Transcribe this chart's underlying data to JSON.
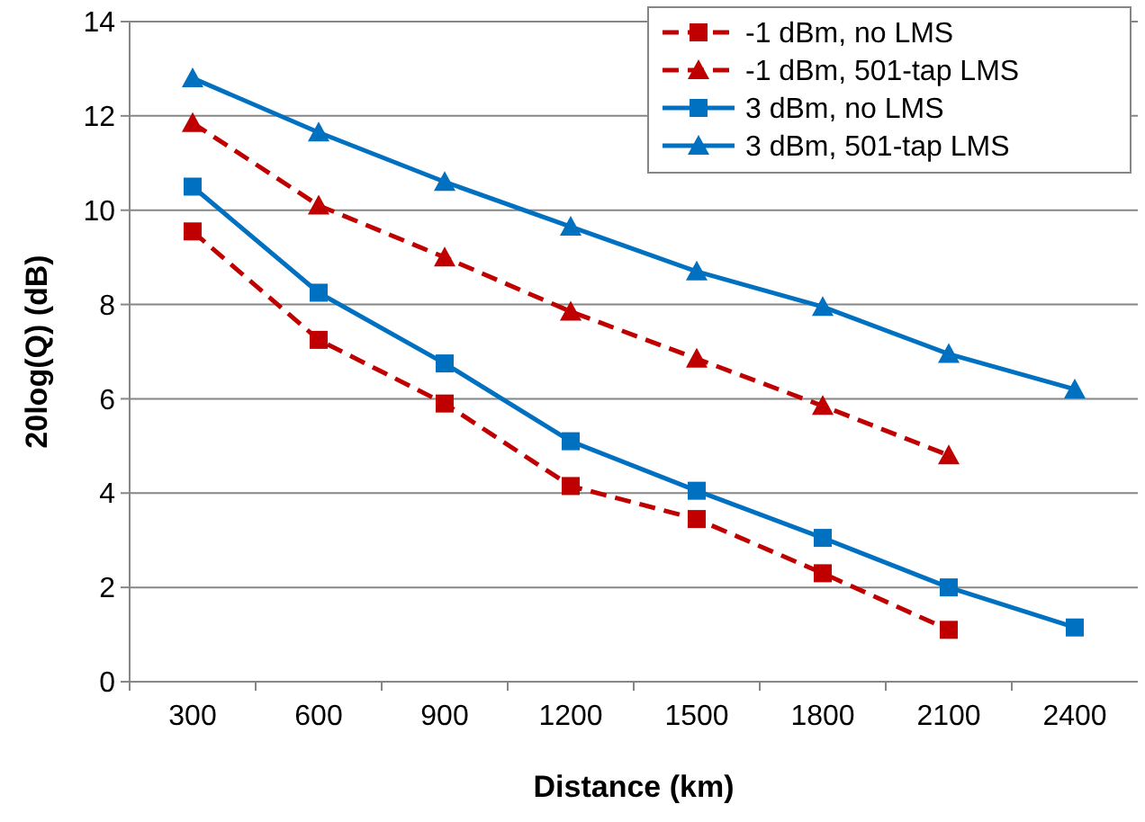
{
  "chart_data": {
    "type": "line",
    "xlabel": "Distance (km)",
    "ylabel": "20log(Q) (dB)",
    "categories": [
      "300",
      "600",
      "900",
      "1200",
      "1500",
      "1800",
      "2100",
      "2400"
    ],
    "ylim": [
      0,
      14
    ],
    "yticks": [
      0,
      2,
      4,
      6,
      8,
      10,
      12,
      14
    ],
    "grid": "y",
    "legend": "top right",
    "series": [
      {
        "name": "-1 dBm, no LMS",
        "color": "#c00000",
        "marker": "square",
        "line_style": "dashed",
        "values": [
          9.55,
          7.25,
          5.9,
          4.15,
          3.45,
          2.3,
          1.1,
          null
        ]
      },
      {
        "name": "-1 dBm, 501-tap LMS",
        "color": "#c00000",
        "marker": "triangle",
        "line_style": "dashed",
        "values": [
          11.85,
          10.1,
          9.0,
          7.85,
          6.85,
          5.85,
          4.8,
          null
        ]
      },
      {
        "name": "3 dBm, no LMS",
        "color": "#0070c0",
        "marker": "square",
        "line_style": "solid",
        "values": [
          10.5,
          8.25,
          6.75,
          5.1,
          4.05,
          3.05,
          2.0,
          1.15
        ]
      },
      {
        "name": "3 dBm, 501-tap LMS",
        "color": "#0070c0",
        "marker": "triangle",
        "line_style": "solid",
        "values": [
          12.8,
          11.65,
          10.6,
          9.65,
          8.7,
          7.95,
          6.95,
          6.2
        ]
      }
    ]
  }
}
